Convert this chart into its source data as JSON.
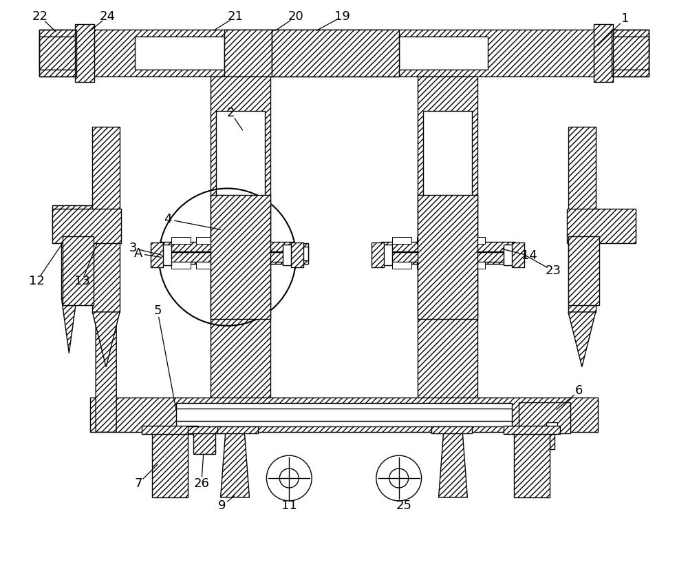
{
  "bg_color": "#ffffff",
  "lw": 1.0,
  "hatch": "////",
  "figsize": [
    10.0,
    8.23
  ],
  "dpi": 100
}
